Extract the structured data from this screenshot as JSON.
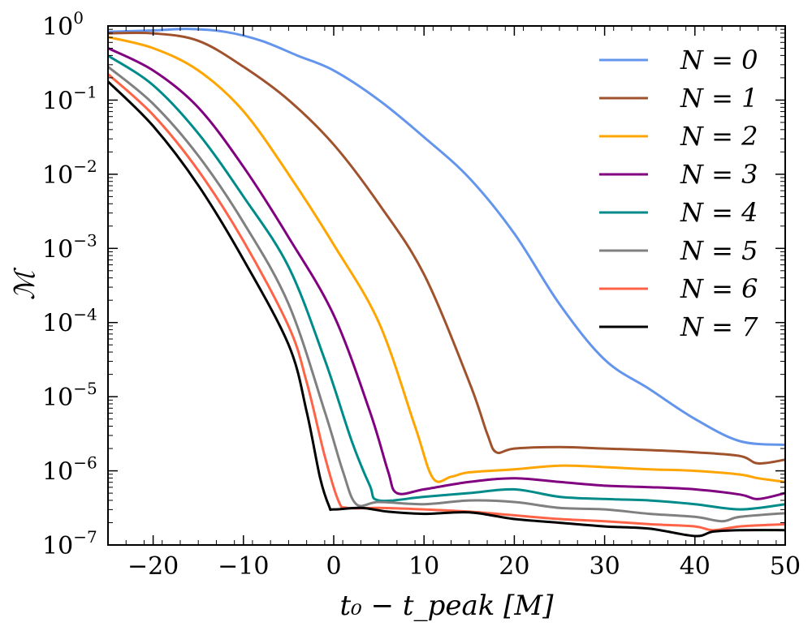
{
  "chart_data": {
    "type": "line",
    "xlabel": "t₀ − t_peak [M]",
    "ylabel": "ℳ",
    "xlim": [
      -25,
      50
    ],
    "ylim": [
      1e-07,
      1
    ],
    "yscale": "log",
    "grid": false,
    "legend_position": "top-right",
    "x_ticks": [
      {
        "value": -20,
        "label": "−20"
      },
      {
        "value": -10,
        "label": "−10"
      },
      {
        "value": 0,
        "label": "0"
      },
      {
        "value": 10,
        "label": "10"
      },
      {
        "value": 20,
        "label": "20"
      },
      {
        "value": 30,
        "label": "30"
      },
      {
        "value": 40,
        "label": "40"
      },
      {
        "value": 50,
        "label": "50"
      }
    ],
    "y_ticks": [
      {
        "exp": 0,
        "base": "10",
        "sup": "0"
      },
      {
        "exp": -1,
        "base": "10",
        "sup": "−1"
      },
      {
        "exp": -2,
        "base": "10",
        "sup": "−2"
      },
      {
        "exp": -3,
        "base": "10",
        "sup": "−3"
      },
      {
        "exp": -4,
        "base": "10",
        "sup": "−4"
      },
      {
        "exp": -5,
        "base": "10",
        "sup": "−5"
      },
      {
        "exp": -6,
        "base": "10",
        "sup": "−6"
      },
      {
        "exp": -7,
        "base": "10",
        "sup": "−7"
      }
    ],
    "series": [
      {
        "name": "N = 0",
        "color": "#6495ed",
        "points": [
          [
            -25,
            -0.08
          ],
          [
            -20,
            -0.06
          ],
          [
            -16,
            -0.04
          ],
          [
            -12,
            -0.08
          ],
          [
            -8,
            -0.2
          ],
          [
            -4,
            -0.4
          ],
          [
            0,
            -0.6
          ],
          [
            5,
            -1.0
          ],
          [
            10,
            -1.5
          ],
          [
            15,
            -2.05
          ],
          [
            20,
            -2.8
          ],
          [
            25,
            -3.75
          ],
          [
            30,
            -4.5
          ],
          [
            35,
            -4.9
          ],
          [
            40,
            -5.3
          ],
          [
            45,
            -5.6
          ],
          [
            50,
            -5.65
          ]
        ]
      },
      {
        "name": "N = 1",
        "color": "#a0522d",
        "points": [
          [
            -25,
            -0.1
          ],
          [
            -20,
            -0.1
          ],
          [
            -15,
            -0.2
          ],
          [
            -10,
            -0.55
          ],
          [
            -5,
            -1.0
          ],
          [
            0,
            -1.6
          ],
          [
            5,
            -2.4
          ],
          [
            10,
            -3.35
          ],
          [
            15,
            -4.8
          ],
          [
            17,
            -5.5
          ],
          [
            18,
            -5.75
          ],
          [
            20,
            -5.7
          ],
          [
            25,
            -5.68
          ],
          [
            30,
            -5.7
          ],
          [
            35,
            -5.72
          ],
          [
            40,
            -5.75
          ],
          [
            45,
            -5.8
          ],
          [
            47,
            -5.9
          ],
          [
            50,
            -5.85
          ]
        ]
      },
      {
        "name": "N = 2",
        "color": "#ffa500",
        "points": [
          [
            -25,
            -0.15
          ],
          [
            -20,
            -0.3
          ],
          [
            -15,
            -0.6
          ],
          [
            -10,
            -1.15
          ],
          [
            -5,
            -2.0
          ],
          [
            0,
            -2.95
          ],
          [
            5,
            -4.0
          ],
          [
            9,
            -5.4
          ],
          [
            11,
            -6.1
          ],
          [
            13,
            -6.08
          ],
          [
            15,
            -6.02
          ],
          [
            20,
            -5.98
          ],
          [
            25,
            -5.93
          ],
          [
            30,
            -5.95
          ],
          [
            35,
            -5.98
          ],
          [
            40,
            -6.0
          ],
          [
            45,
            -6.05
          ],
          [
            47,
            -6.1
          ],
          [
            50,
            -6.15
          ]
        ]
      },
      {
        "name": "N = 3",
        "color": "#800080",
        "points": [
          [
            -25,
            -0.3
          ],
          [
            -20,
            -0.6
          ],
          [
            -15,
            -1.1
          ],
          [
            -10,
            -1.9
          ],
          [
            -5,
            -2.85
          ],
          [
            0,
            -3.9
          ],
          [
            4,
            -5.2
          ],
          [
            6,
            -6.0
          ],
          [
            7,
            -6.3
          ],
          [
            10,
            -6.25
          ],
          [
            15,
            -6.15
          ],
          [
            20,
            -6.1
          ],
          [
            25,
            -6.15
          ],
          [
            30,
            -6.2
          ],
          [
            35,
            -6.22
          ],
          [
            40,
            -6.25
          ],
          [
            45,
            -6.32
          ],
          [
            47,
            -6.38
          ],
          [
            50,
            -6.3
          ]
        ]
      },
      {
        "name": "N = 4",
        "color": "#008b8b",
        "points": [
          [
            -25,
            -0.4
          ],
          [
            -20,
            -0.8
          ],
          [
            -15,
            -1.45
          ],
          [
            -10,
            -2.3
          ],
          [
            -5,
            -3.25
          ],
          [
            -1,
            -4.5
          ],
          [
            2,
            -5.6
          ],
          [
            4,
            -6.2
          ],
          [
            5,
            -6.4
          ],
          [
            10,
            -6.35
          ],
          [
            15,
            -6.3
          ],
          [
            20,
            -6.25
          ],
          [
            25,
            -6.35
          ],
          [
            30,
            -6.38
          ],
          [
            35,
            -6.4
          ],
          [
            40,
            -6.45
          ],
          [
            45,
            -6.52
          ],
          [
            50,
            -6.45
          ]
        ]
      },
      {
        "name": "N = 5",
        "color": "#808080",
        "points": [
          [
            -25,
            -0.55
          ],
          [
            -20,
            -1.05
          ],
          [
            -15,
            -1.75
          ],
          [
            -10,
            -2.65
          ],
          [
            -5,
            -3.75
          ],
          [
            -1,
            -5.2
          ],
          [
            1,
            -6.0
          ],
          [
            2.5,
            -6.45
          ],
          [
            5,
            -6.42
          ],
          [
            10,
            -6.45
          ],
          [
            15,
            -6.4
          ],
          [
            20,
            -6.42
          ],
          [
            25,
            -6.5
          ],
          [
            30,
            -6.52
          ],
          [
            35,
            -6.58
          ],
          [
            40,
            -6.62
          ],
          [
            43,
            -6.68
          ],
          [
            45,
            -6.62
          ],
          [
            50,
            -6.57
          ]
        ]
      },
      {
        "name": "N = 6",
        "color": "#ff6347",
        "points": [
          [
            -25,
            -0.65
          ],
          [
            -20,
            -1.2
          ],
          [
            -15,
            -1.95
          ],
          [
            -10,
            -2.9
          ],
          [
            -5,
            -4.05
          ],
          [
            -3,
            -4.8
          ],
          [
            -1,
            -5.8
          ],
          [
            0.5,
            -6.4
          ],
          [
            1.5,
            -6.5
          ],
          [
            5,
            -6.5
          ],
          [
            10,
            -6.52
          ],
          [
            15,
            -6.55
          ],
          [
            20,
            -6.6
          ],
          [
            25,
            -6.65
          ],
          [
            30,
            -6.68
          ],
          [
            35,
            -6.72
          ],
          [
            40,
            -6.75
          ],
          [
            42,
            -6.8
          ],
          [
            45,
            -6.75
          ],
          [
            50,
            -6.72
          ]
        ]
      },
      {
        "name": "N = 7",
        "color": "#000000",
        "points": [
          [
            -25,
            -0.75
          ],
          [
            -20,
            -1.35
          ],
          [
            -15,
            -2.15
          ],
          [
            -10,
            -3.15
          ],
          [
            -5,
            -4.3
          ],
          [
            -3,
            -5.2
          ],
          [
            -1.5,
            -6.1
          ],
          [
            -0.5,
            -6.48
          ],
          [
            0,
            -6.52
          ],
          [
            3,
            -6.5
          ],
          [
            6,
            -6.55
          ],
          [
            10,
            -6.58
          ],
          [
            15,
            -6.56
          ],
          [
            20,
            -6.65
          ],
          [
            25,
            -6.7
          ],
          [
            30,
            -6.75
          ],
          [
            35,
            -6.78
          ],
          [
            40,
            -6.88
          ],
          [
            42,
            -6.82
          ],
          [
            45,
            -6.8
          ],
          [
            50,
            -6.8
          ]
        ]
      }
    ]
  }
}
